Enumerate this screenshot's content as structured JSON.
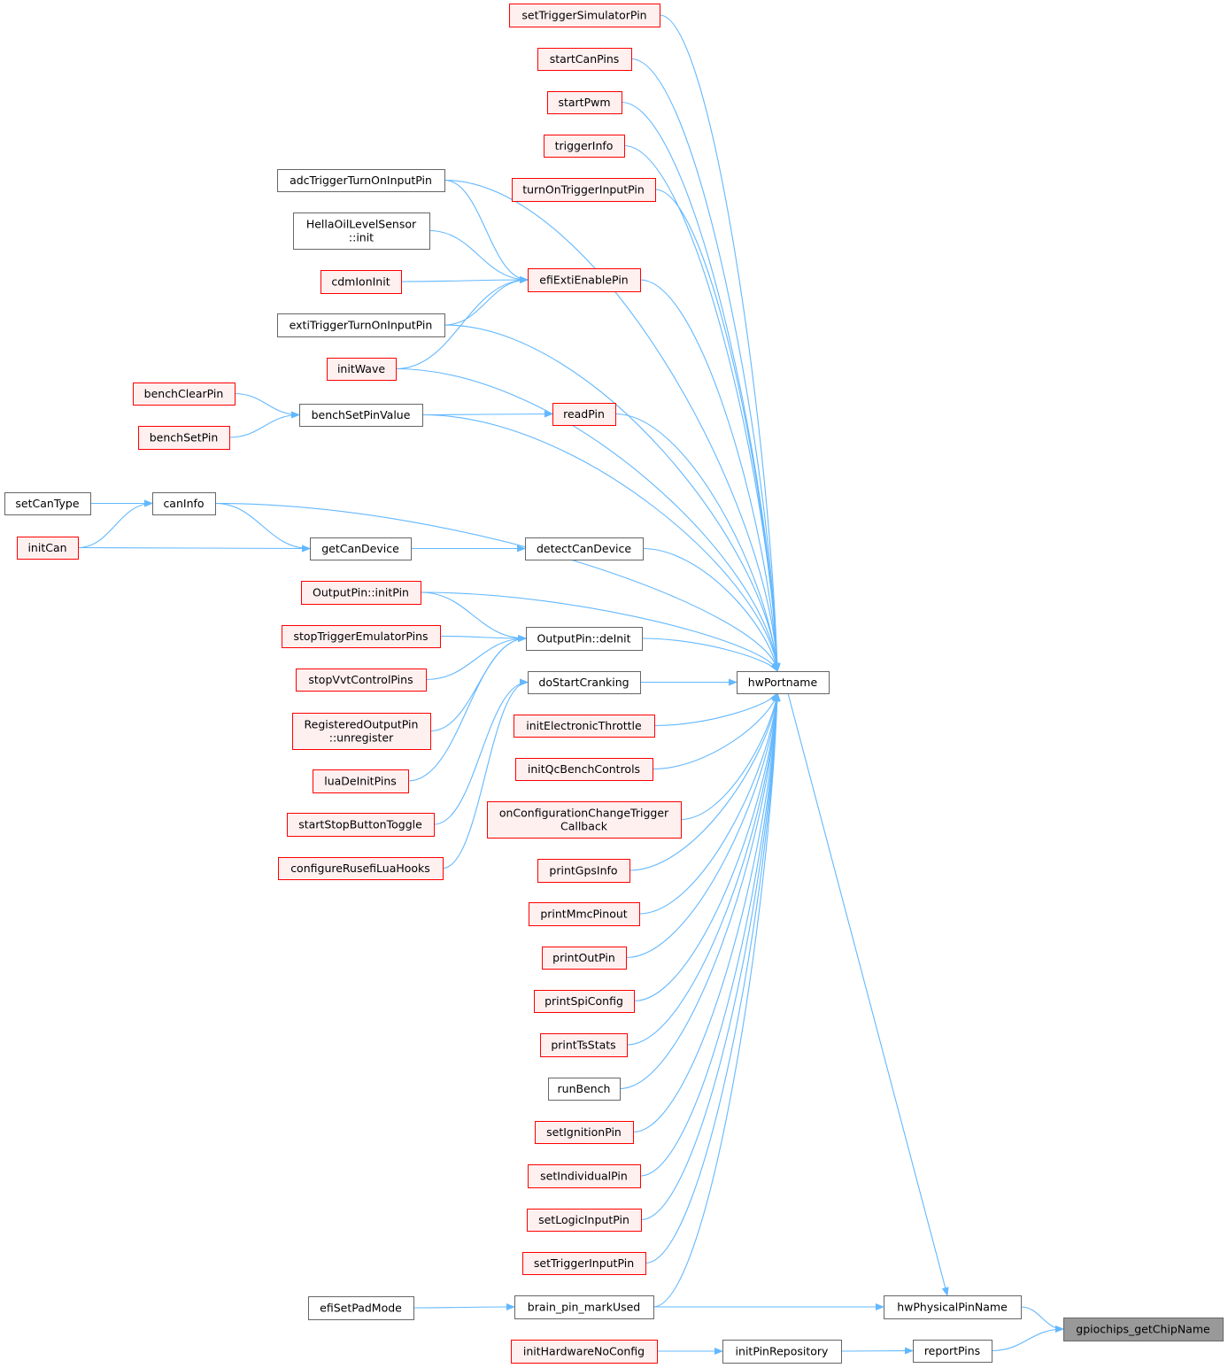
{
  "colors": {
    "edge": "#63B8FF",
    "external_border": "#FF0000",
    "external_fill": "#FFF0F0",
    "node_border": "#666666",
    "root_fill": "#999999"
  },
  "nodes": [
    {
      "id": "setTriggerSimulatorPin",
      "lines": [
        "setTriggerSimulatorPin"
      ],
      "style": "red"
    },
    {
      "id": "startCanPins",
      "lines": [
        "startCanPins"
      ],
      "style": "red"
    },
    {
      "id": "startPwm",
      "lines": [
        "startPwm"
      ],
      "style": "red"
    },
    {
      "id": "triggerInfo",
      "lines": [
        "triggerInfo"
      ],
      "style": "red"
    },
    {
      "id": "turnOnTriggerInputPin",
      "lines": [
        "turnOnTriggerInputPin"
      ],
      "style": "red"
    },
    {
      "id": "efiExtiEnablePin",
      "lines": [
        "efiExtiEnablePin"
      ],
      "style": "red"
    },
    {
      "id": "readPin",
      "lines": [
        "readPin"
      ],
      "style": "red"
    },
    {
      "id": "detectCanDevice",
      "lines": [
        "detectCanDevice"
      ],
      "style": "gray"
    },
    {
      "id": "OutputPin_deInit",
      "lines": [
        "OutputPin::deInit"
      ],
      "style": "gray"
    },
    {
      "id": "doStartCranking",
      "lines": [
        "doStartCranking"
      ],
      "style": "gray"
    },
    {
      "id": "initElectronicThrottle",
      "lines": [
        "initElectronicThrottle"
      ],
      "style": "red"
    },
    {
      "id": "initQcBenchControls",
      "lines": [
        "initQcBenchControls"
      ],
      "style": "red"
    },
    {
      "id": "onConfigurationChangeTriggerCallback",
      "lines": [
        "onConfigurationChangeTrigger",
        "Callback"
      ],
      "style": "red"
    },
    {
      "id": "printGpsInfo",
      "lines": [
        "printGpsInfo"
      ],
      "style": "red"
    },
    {
      "id": "printMmcPinout",
      "lines": [
        "printMmcPinout"
      ],
      "style": "red"
    },
    {
      "id": "printOutPin",
      "lines": [
        "printOutPin"
      ],
      "style": "red"
    },
    {
      "id": "printSpiConfig",
      "lines": [
        "printSpiConfig"
      ],
      "style": "red"
    },
    {
      "id": "printTsStats",
      "lines": [
        "printTsStats"
      ],
      "style": "red"
    },
    {
      "id": "runBench",
      "lines": [
        "runBench"
      ],
      "style": "gray"
    },
    {
      "id": "setIgnitionPin",
      "lines": [
        "setIgnitionPin"
      ],
      "style": "red"
    },
    {
      "id": "setIndividualPin",
      "lines": [
        "setIndividualPin"
      ],
      "style": "red"
    },
    {
      "id": "setLogicInputPin",
      "lines": [
        "setLogicInputPin"
      ],
      "style": "red"
    },
    {
      "id": "setTriggerInputPin",
      "lines": [
        "setTriggerInputPin"
      ],
      "style": "red"
    },
    {
      "id": "brain_pin_markUsed",
      "lines": [
        "brain_pin_markUsed"
      ],
      "style": "gray"
    },
    {
      "id": "initHardwareNoConfig",
      "lines": [
        "initHardwareNoConfig"
      ],
      "style": "red"
    },
    {
      "id": "adcTriggerTurnOnInputPin",
      "lines": [
        "adcTriggerTurnOnInputPin"
      ],
      "style": "gray"
    },
    {
      "id": "HellaOilLevelSensor_init",
      "lines": [
        "HellaOilLevelSensor",
        "::init"
      ],
      "style": "gray"
    },
    {
      "id": "cdmIonInit",
      "lines": [
        "cdmIonInit"
      ],
      "style": "red"
    },
    {
      "id": "extiTriggerTurnOnInputPin",
      "lines": [
        "extiTriggerTurnOnInputPin"
      ],
      "style": "gray"
    },
    {
      "id": "initWave",
      "lines": [
        "initWave"
      ],
      "style": "red"
    },
    {
      "id": "benchSetPinValue",
      "lines": [
        "benchSetPinValue"
      ],
      "style": "gray"
    },
    {
      "id": "getCanDevice",
      "lines": [
        "getCanDevice"
      ],
      "style": "gray"
    },
    {
      "id": "OutputPin_initPin",
      "lines": [
        "OutputPin::initPin"
      ],
      "style": "red"
    },
    {
      "id": "stopTriggerEmulatorPins",
      "lines": [
        "stopTriggerEmulatorPins"
      ],
      "style": "red"
    },
    {
      "id": "stopVvtControlPins",
      "lines": [
        "stopVvtControlPins"
      ],
      "style": "red"
    },
    {
      "id": "RegisteredOutputPin_unregister",
      "lines": [
        "RegisteredOutputPin",
        "::unregister"
      ],
      "style": "red"
    },
    {
      "id": "luaDeInitPins",
      "lines": [
        "luaDeInitPins"
      ],
      "style": "red"
    },
    {
      "id": "startStopButtonToggle",
      "lines": [
        "startStopButtonToggle"
      ],
      "style": "red"
    },
    {
      "id": "configureRusefiLuaHooks",
      "lines": [
        "configureRusefiLuaHooks"
      ],
      "style": "red"
    },
    {
      "id": "efiSetPadMode",
      "lines": [
        "efiSetPadMode"
      ],
      "style": "gray"
    },
    {
      "id": "benchClearPin",
      "lines": [
        "benchClearPin"
      ],
      "style": "red"
    },
    {
      "id": "benchSetPin",
      "lines": [
        "benchSetPin"
      ],
      "style": "red"
    },
    {
      "id": "canInfo",
      "lines": [
        "canInfo"
      ],
      "style": "gray"
    },
    {
      "id": "setCanType",
      "lines": [
        "setCanType"
      ],
      "style": "gray"
    },
    {
      "id": "initCan",
      "lines": [
        "initCan"
      ],
      "style": "red"
    },
    {
      "id": "hwPortname",
      "lines": [
        "hwPortname"
      ],
      "style": "gray"
    },
    {
      "id": "initPinRepository",
      "lines": [
        "initPinRepository"
      ],
      "style": "gray"
    },
    {
      "id": "hwPhysicalPinName",
      "lines": [
        "hwPhysicalPinName"
      ],
      "style": "gray"
    },
    {
      "id": "reportPins",
      "lines": [
        "reportPins"
      ],
      "style": "gray"
    },
    {
      "id": "gpiochips_getChipName",
      "lines": [
        "gpiochips_getChipName"
      ],
      "style": "root"
    }
  ],
  "edges": [
    [
      "setTriggerSimulatorPin",
      "hwPortname"
    ],
    [
      "startCanPins",
      "hwPortname"
    ],
    [
      "startPwm",
      "hwPortname"
    ],
    [
      "triggerInfo",
      "hwPortname"
    ],
    [
      "turnOnTriggerInputPin",
      "hwPortname"
    ],
    [
      "efiExtiEnablePin",
      "hwPortname"
    ],
    [
      "readPin",
      "hwPortname"
    ],
    [
      "detectCanDevice",
      "hwPortname"
    ],
    [
      "OutputPin_deInit",
      "hwPortname"
    ],
    [
      "doStartCranking",
      "hwPortname"
    ],
    [
      "initElectronicThrottle",
      "hwPortname"
    ],
    [
      "initQcBenchControls",
      "hwPortname"
    ],
    [
      "onConfigurationChangeTriggerCallback",
      "hwPortname"
    ],
    [
      "printGpsInfo",
      "hwPortname"
    ],
    [
      "printMmcPinout",
      "hwPortname"
    ],
    [
      "printOutPin",
      "hwPortname"
    ],
    [
      "printSpiConfig",
      "hwPortname"
    ],
    [
      "printTsStats",
      "hwPortname"
    ],
    [
      "runBench",
      "hwPortname"
    ],
    [
      "setIgnitionPin",
      "hwPortname"
    ],
    [
      "setIndividualPin",
      "hwPortname"
    ],
    [
      "setLogicInputPin",
      "hwPortname"
    ],
    [
      "setTriggerInputPin",
      "hwPortname"
    ],
    [
      "brain_pin_markUsed",
      "hwPortname"
    ],
    [
      "adcTriggerTurnOnInputPin",
      "efiExtiEnablePin"
    ],
    [
      "adcTriggerTurnOnInputPin",
      "hwPortname"
    ],
    [
      "HellaOilLevelSensor_init",
      "efiExtiEnablePin"
    ],
    [
      "cdmIonInit",
      "efiExtiEnablePin"
    ],
    [
      "extiTriggerTurnOnInputPin",
      "efiExtiEnablePin"
    ],
    [
      "extiTriggerTurnOnInputPin",
      "hwPortname"
    ],
    [
      "initWave",
      "efiExtiEnablePin"
    ],
    [
      "initWave",
      "hwPortname"
    ],
    [
      "benchSetPinValue",
      "readPin"
    ],
    [
      "benchSetPinValue",
      "hwPortname"
    ],
    [
      "benchClearPin",
      "benchSetPinValue"
    ],
    [
      "benchSetPin",
      "benchSetPinValue"
    ],
    [
      "canInfo",
      "hwPortname"
    ],
    [
      "canInfo",
      "getCanDevice"
    ],
    [
      "setCanType",
      "canInfo"
    ],
    [
      "initCan",
      "canInfo"
    ],
    [
      "initCan",
      "getCanDevice"
    ],
    [
      "getCanDevice",
      "detectCanDevice"
    ],
    [
      "OutputPin_initPin",
      "hwPortname"
    ],
    [
      "OutputPin_initPin",
      "OutputPin_deInit"
    ],
    [
      "stopTriggerEmulatorPins",
      "OutputPin_deInit"
    ],
    [
      "stopVvtControlPins",
      "OutputPin_deInit"
    ],
    [
      "RegisteredOutputPin_unregister",
      "OutputPin_deInit"
    ],
    [
      "luaDeInitPins",
      "OutputPin_deInit"
    ],
    [
      "startStopButtonToggle",
      "doStartCranking"
    ],
    [
      "configureRusefiLuaHooks",
      "doStartCranking"
    ],
    [
      "efiSetPadMode",
      "brain_pin_markUsed"
    ],
    [
      "brain_pin_markUsed",
      "hwPhysicalPinName"
    ],
    [
      "hwPortname",
      "hwPhysicalPinName"
    ],
    [
      "hwPhysicalPinName",
      "gpiochips_getChipName"
    ],
    [
      "reportPins",
      "gpiochips_getChipName"
    ],
    [
      "initPinRepository",
      "reportPins"
    ],
    [
      "initHardwareNoConfig",
      "initPinRepository"
    ]
  ]
}
